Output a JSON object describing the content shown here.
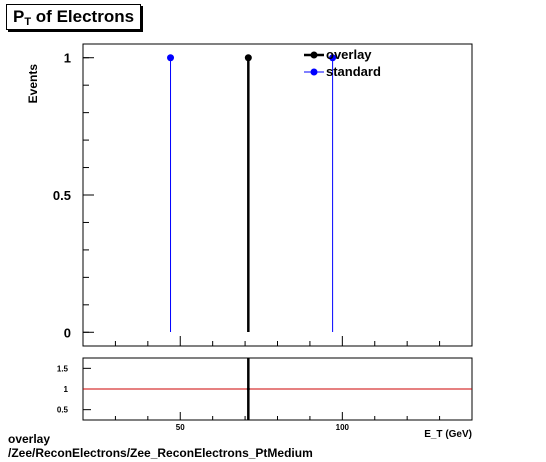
{
  "title": {
    "main": "P",
    "sub": "T",
    "rest": " of Electrons"
  },
  "chart_data": [
    {
      "type": "scatter",
      "panel": "main",
      "ylabel": "Events",
      "ylim": [
        -0.05,
        1.05
      ],
      "xlim": [
        20,
        140
      ],
      "yticks": [
        0,
        0.5,
        1
      ],
      "ytick_labels": [
        "0",
        "0.5",
        "1"
      ],
      "legend": {
        "position": "top-right",
        "entries": [
          "overlay",
          "standard"
        ]
      },
      "series": [
        {
          "name": "overlay",
          "color": "#000000",
          "points": [
            {
              "x": 71,
              "y": 1
            }
          ]
        },
        {
          "name": "standard",
          "color": "#0000ff",
          "points": [
            {
              "x": 47,
              "y": 1
            },
            {
              "x": 97,
              "y": 1
            }
          ]
        }
      ]
    },
    {
      "type": "line",
      "panel": "ratio",
      "xlabel": "E_T (GeV)",
      "xlim": [
        20,
        140
      ],
      "ylim": [
        0.25,
        1.75
      ],
      "xticks": [
        50,
        100
      ],
      "xtick_labels": [
        "50",
        "100"
      ],
      "yticks": [
        0.5,
        1,
        1.5
      ],
      "ytick_labels": [
        "0.5",
        "1",
        "1.5"
      ],
      "reference_line": {
        "y": 1,
        "color": "#cc0000"
      },
      "points": [
        {
          "x": 71,
          "y": 1
        }
      ]
    }
  ],
  "footer": {
    "line1": "overlay",
    "line2": "/Zee/ReconElectrons/Zee_ReconElectrons_PtMedium"
  }
}
